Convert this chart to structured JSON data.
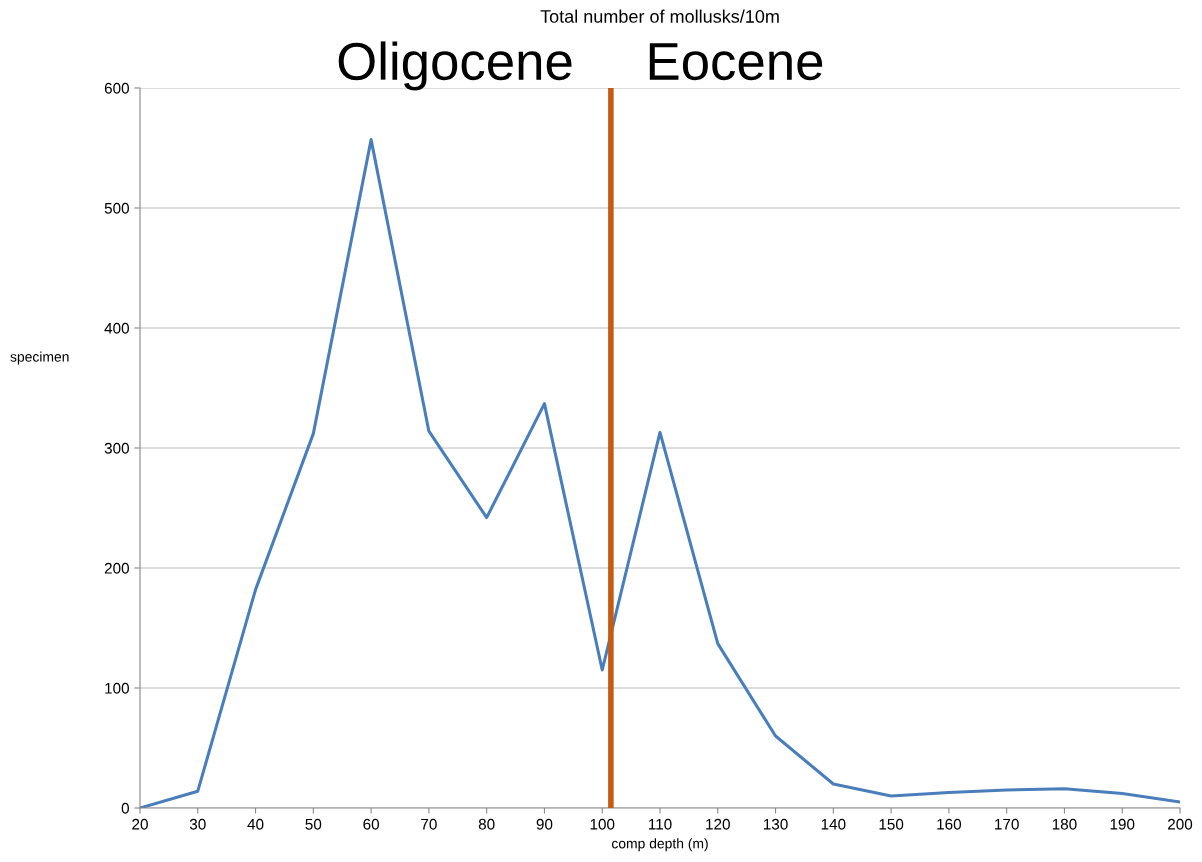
{
  "chart_data": {
    "type": "line",
    "title": "Total number of mollusks/10m",
    "xlabel": "comp depth (m)",
    "ylabel": "specimen",
    "x": [
      20,
      30,
      40,
      50,
      60,
      70,
      80,
      90,
      100,
      110,
      120,
      130,
      140,
      150,
      160,
      170,
      180,
      190,
      200
    ],
    "series": [
      {
        "color": "#4a7ebb",
        "values": [
          0,
          14,
          182,
          312,
          557,
          314,
          242,
          337,
          115,
          313,
          137,
          60,
          20,
          10,
          13,
          15,
          16,
          12,
          5
        ]
      }
    ],
    "xlim": [
      20,
      200
    ],
    "xticks": [
      20,
      30,
      40,
      50,
      60,
      70,
      80,
      90,
      100,
      110,
      120,
      130,
      140,
      150,
      160,
      170,
      180,
      190,
      200
    ],
    "ylim": [
      0,
      600
    ],
    "yticks": [
      0,
      100,
      200,
      300,
      400,
      500,
      600
    ],
    "ref_lines": [
      {
        "axis": "x",
        "value": 101.5,
        "color": "#c55a11"
      }
    ],
    "annotations": [
      "Oligocene",
      "Eocene"
    ],
    "grid": "y",
    "legend": false,
    "marker": "none",
    "line_style": "solid"
  }
}
